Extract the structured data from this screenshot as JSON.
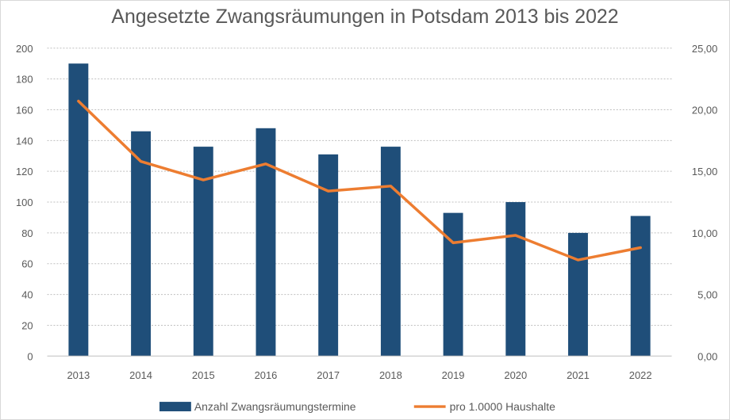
{
  "chart_data": {
    "type": "bar",
    "title": "Angesetzte Zwangsräumungen in Potsdam 2013 bis 2022",
    "categories": [
      "2013",
      "2014",
      "2015",
      "2016",
      "2017",
      "2018",
      "2019",
      "2020",
      "2021",
      "2022"
    ],
    "series": [
      {
        "name": "Anzahl Zwangsräumungstermine",
        "type": "bar",
        "axis": "left",
        "color": "#1f4e79",
        "values": [
          190,
          146,
          136,
          148,
          131,
          136,
          93,
          100,
          80,
          91
        ]
      },
      {
        "name": "pro 1.0000 Haushalte",
        "type": "line",
        "axis": "right",
        "color": "#ed7d31",
        "values": [
          20.7,
          15.8,
          14.3,
          15.6,
          13.4,
          13.8,
          9.2,
          9.8,
          7.8,
          8.8
        ]
      }
    ],
    "y_left": {
      "range": [
        0,
        200
      ],
      "ticks": [
        "0",
        "20",
        "40",
        "60",
        "80",
        "100",
        "120",
        "140",
        "160",
        "180",
        "200"
      ]
    },
    "y_right": {
      "range": [
        0,
        25
      ],
      "ticks": [
        "0,00",
        "5,00",
        "10,00",
        "15,00",
        "20,00",
        "25,00"
      ]
    },
    "grid": true,
    "legend_position": "bottom"
  }
}
